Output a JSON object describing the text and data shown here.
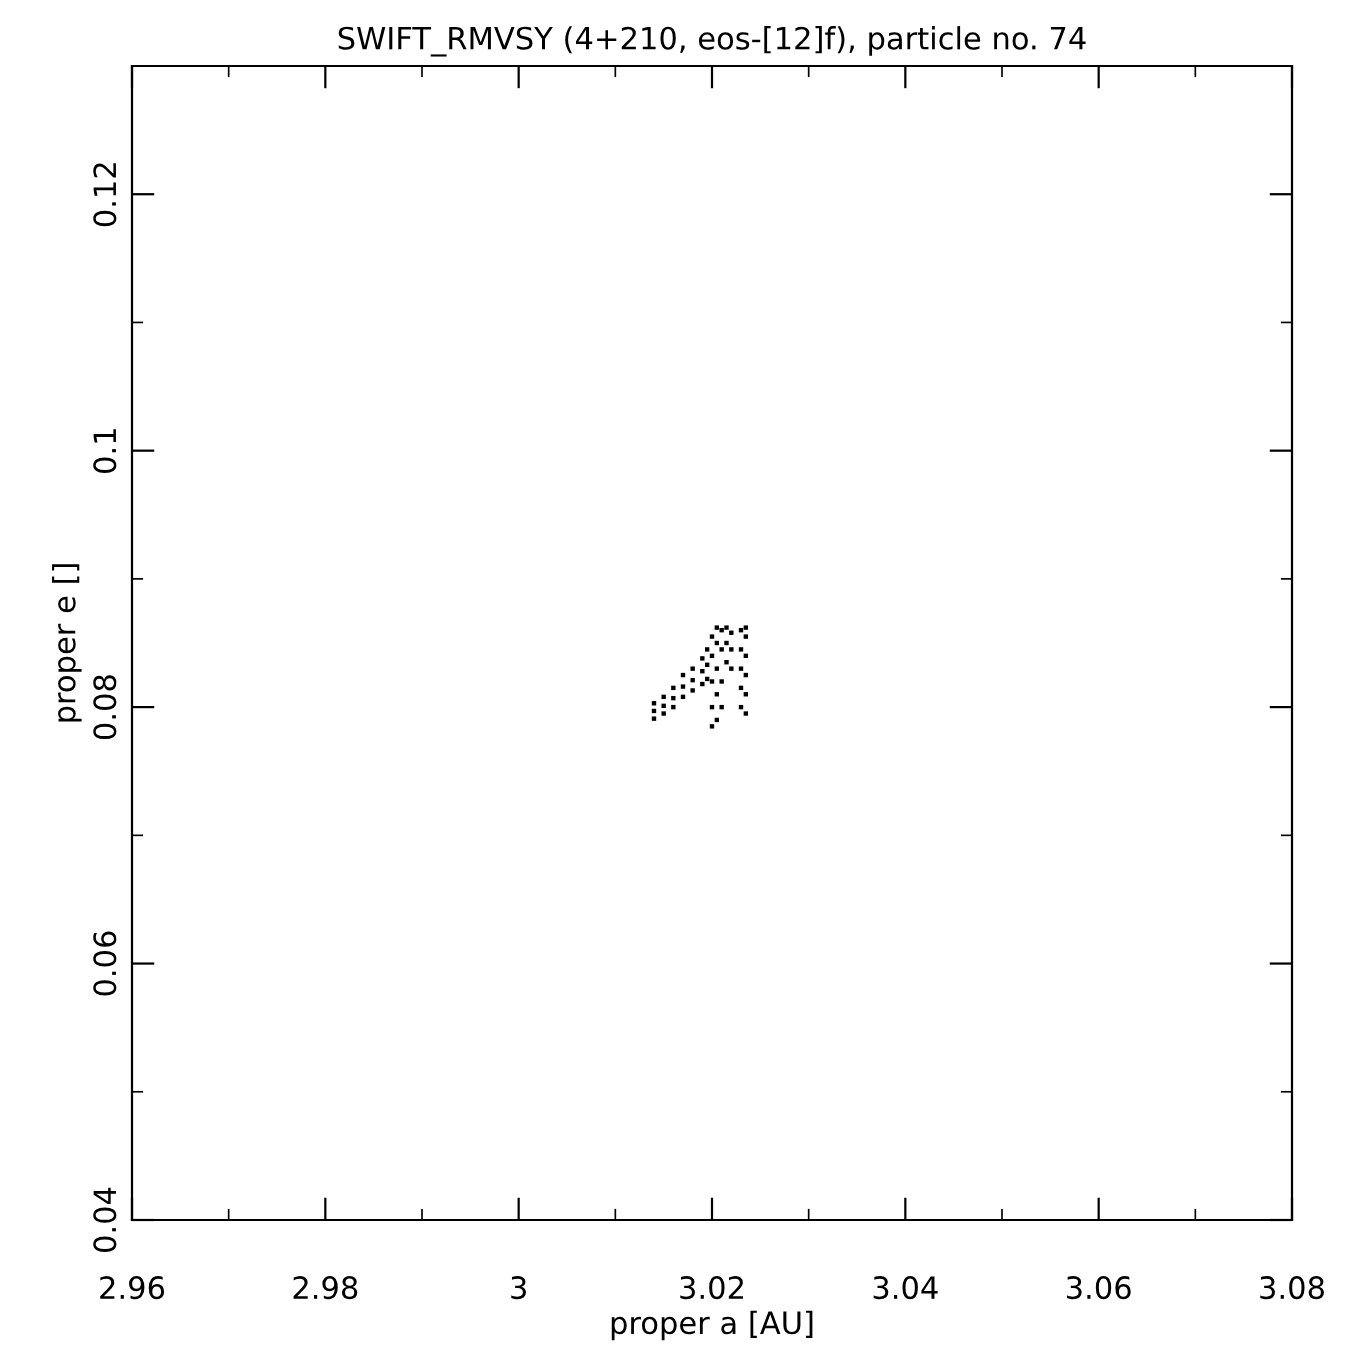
{
  "chart_data": {
    "type": "scatter",
    "title": "SWIFT_RMVSY (4+210, eos-[12]f), particle no. 74",
    "xlabel": "proper a [AU]",
    "ylabel": "proper e []",
    "xlim": [
      2.96,
      3.08
    ],
    "ylim": [
      0.04,
      0.13
    ],
    "xticks": [
      {
        "value": 2.96,
        "label": "2.96"
      },
      {
        "value": 2.98,
        "label": "2.98"
      },
      {
        "value": 3,
        "label": "3"
      },
      {
        "value": 3.02,
        "label": "3.02"
      },
      {
        "value": 3.04,
        "label": "3.04"
      },
      {
        "value": 3.06,
        "label": "3.06"
      },
      {
        "value": 3.08,
        "label": "3.08"
      }
    ],
    "yticks": [
      {
        "value": 0.04,
        "label": "0.04"
      },
      {
        "value": 0.06,
        "label": "0.06"
      },
      {
        "value": 0.08,
        "label": "0.08"
      },
      {
        "value": 0.1,
        "label": "0.1"
      },
      {
        "value": 0.12,
        "label": "0.12"
      }
    ],
    "grid": false,
    "marker": "square",
    "series": [
      {
        "color": "#000000",
        "x": [
          3.014,
          3.014,
          3.014,
          3.015,
          3.015,
          3.015,
          3.016,
          3.016,
          3.016,
          3.017,
          3.017,
          3.017,
          3.018,
          3.018,
          3.018,
          3.019,
          3.019,
          3.019,
          3.0195,
          3.0195,
          3.0195,
          3.02,
          3.02,
          3.02,
          3.02,
          3.02,
          3.0205,
          3.0205,
          3.0205,
          3.0205,
          3.0205,
          3.021,
          3.021,
          3.021,
          3.021,
          3.0215,
          3.0215,
          3.0215,
          3.022,
          3.022,
          3.022,
          3.023,
          3.023,
          3.023,
          3.023,
          3.023,
          3.0235,
          3.0235,
          3.0235,
          3.0235,
          3.0235,
          3.0235
        ],
        "values": [
          0.0791,
          0.0797,
          0.0803,
          0.0795,
          0.0801,
          0.0808,
          0.08,
          0.0807,
          0.0815,
          0.0808,
          0.0816,
          0.0825,
          0.0813,
          0.0821,
          0.083,
          0.0818,
          0.0828,
          0.0838,
          0.0822,
          0.0833,
          0.0845,
          0.0785,
          0.08,
          0.082,
          0.084,
          0.0855,
          0.079,
          0.081,
          0.083,
          0.085,
          0.0862,
          0.08,
          0.082,
          0.0845,
          0.086,
          0.0835,
          0.085,
          0.0862,
          0.083,
          0.0845,
          0.0858,
          0.08,
          0.0815,
          0.083,
          0.0845,
          0.086,
          0.0795,
          0.081,
          0.0825,
          0.084,
          0.0855,
          0.0862
        ]
      }
    ]
  }
}
